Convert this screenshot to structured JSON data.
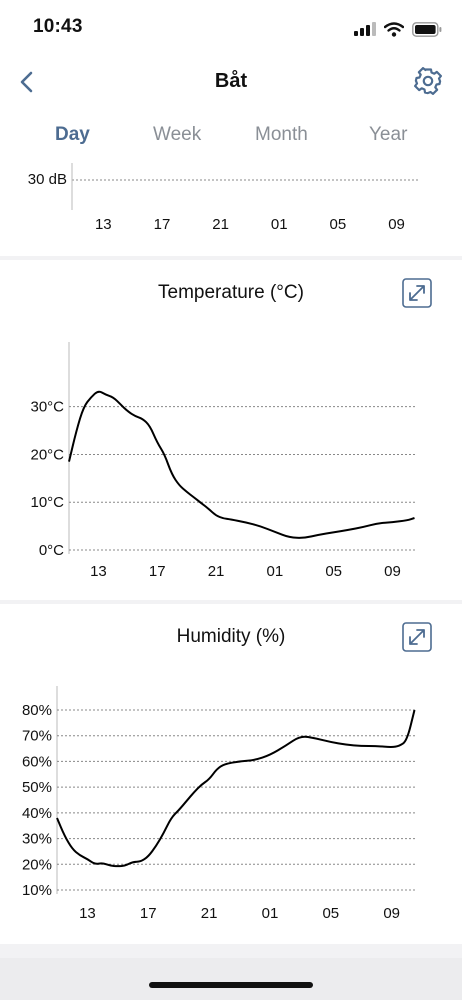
{
  "status_bar": {
    "time": "10:43"
  },
  "header": {
    "title": "Båt"
  },
  "tabs": [
    {
      "label": "Day",
      "active": true
    },
    {
      "label": "Week",
      "active": false
    },
    {
      "label": "Month",
      "active": false
    },
    {
      "label": "Year",
      "active": false
    }
  ],
  "colors": {
    "accent": "#4d6c91",
    "inactive_tab": "#8a8f96",
    "line": "#000000",
    "grid": "#888888"
  },
  "icons": {
    "back": "chevron-left-icon",
    "settings": "gear-icon",
    "expand": "expand-arrows-icon"
  },
  "sound_card": {
    "y_label": "30 dB"
  },
  "temperature_card": {
    "title": "Temperature (°C)"
  },
  "humidity_card": {
    "title": "Humidity (%)"
  },
  "chart_data": [
    {
      "type": "line",
      "title": "",
      "xlabel": "",
      "ylabel": "",
      "x_ticks": [
        "13",
        "17",
        "21",
        "01",
        "05",
        "09"
      ],
      "y_ticks": [
        "30 dB"
      ],
      "series": []
    },
    {
      "type": "line",
      "title": "Temperature (°C)",
      "xlabel": "",
      "ylabel": "",
      "x_ticks": [
        "13",
        "17",
        "21",
        "01",
        "05",
        "09"
      ],
      "y_ticks": [
        "0°C",
        "10°C",
        "20°C",
        "30°C"
      ],
      "y_tick_values": [
        0,
        10,
        20,
        30
      ],
      "ylim": [
        0,
        36
      ],
      "grid": true,
      "series": [
        {
          "x": [
            "11:00",
            "11:30",
            "12:00",
            "12:30",
            "13:00",
            "13:30",
            "14:00",
            "14:30",
            "15:00",
            "15:30",
            "16:00",
            "16:30",
            "17:00",
            "17:30",
            "18:00",
            "18:30",
            "19:00",
            "19:30",
            "20:00",
            "20:30",
            "21:00",
            "21:30",
            "22:00",
            "23:00",
            "00:00",
            "01:00",
            "02:00",
            "03:00",
            "04:00",
            "05:00",
            "06:00",
            "07:00",
            "08:00",
            "09:00",
            "10:00",
            "10:30"
          ],
          "values": [
            18.5,
            25,
            30,
            32,
            33.4,
            32.5,
            32,
            30.5,
            29,
            28,
            27.5,
            26,
            22.5,
            20,
            15.8,
            13.5,
            12.2,
            11,
            9.8,
            8.6,
            7.2,
            6.6,
            6.4,
            5.8,
            5,
            3.8,
            2.6,
            2.5,
            3.2,
            3.7,
            4.2,
            4.8,
            5.6,
            5.8,
            6.2,
            6.7
          ]
        }
      ]
    },
    {
      "type": "line",
      "title": "Humidity (%)",
      "xlabel": "",
      "ylabel": "",
      "x_ticks": [
        "13",
        "17",
        "21",
        "01",
        "05",
        "09"
      ],
      "y_ticks": [
        "10%",
        "20%",
        "30%",
        "40%",
        "50%",
        "60%",
        "70%",
        "80%"
      ],
      "y_tick_values": [
        10,
        20,
        30,
        40,
        50,
        60,
        70,
        80
      ],
      "ylim": [
        10,
        80
      ],
      "grid": true,
      "series": [
        {
          "x": [
            "11:00",
            "11:30",
            "12:00",
            "12:30",
            "13:00",
            "13:30",
            "14:00",
            "14:30",
            "15:00",
            "15:30",
            "16:00",
            "16:30",
            "17:00",
            "17:30",
            "18:00",
            "18:30",
            "19:00",
            "19:30",
            "20:00",
            "20:30",
            "21:00",
            "21:30",
            "22:00",
            "23:00",
            "00:00",
            "01:00",
            "02:00",
            "03:00",
            "04:00",
            "05:00",
            "06:00",
            "07:00",
            "08:00",
            "09:00",
            "09:30",
            "10:00",
            "10:30"
          ],
          "values": [
            38,
            31,
            26,
            23.5,
            22,
            20,
            20.5,
            19.5,
            19.2,
            19.5,
            21,
            21,
            23,
            27,
            32,
            38,
            41,
            44.5,
            48,
            51,
            53,
            57,
            59,
            60,
            60.5,
            62.5,
            66,
            70,
            69,
            67.5,
            66.5,
            66,
            66,
            65.5,
            66,
            68,
            80
          ]
        }
      ]
    }
  ]
}
